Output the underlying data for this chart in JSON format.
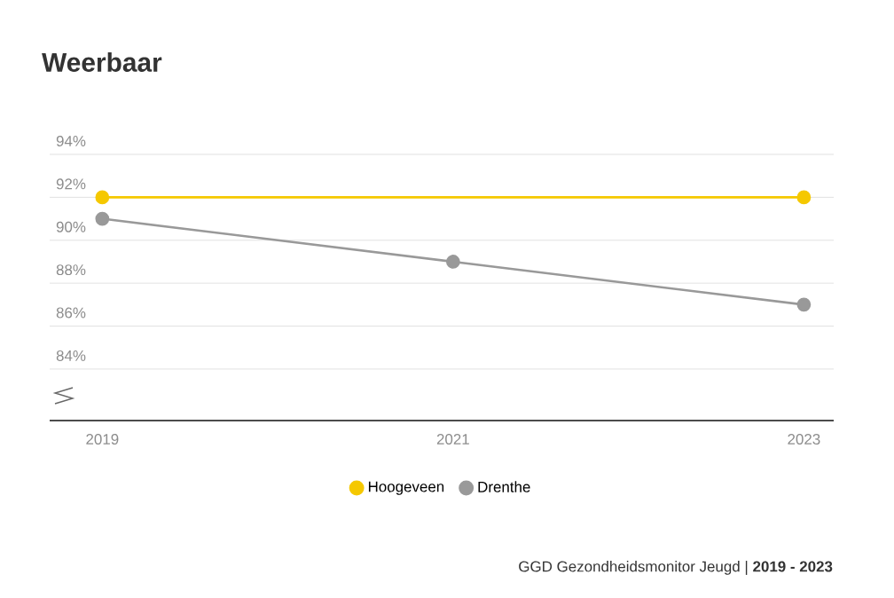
{
  "chart_data": {
    "type": "line",
    "title": "Weerbaar",
    "series": [
      {
        "name": "Hoogeveen",
        "color": "#f5c800",
        "x": [
          2019,
          2023
        ],
        "values": [
          92,
          92
        ]
      },
      {
        "name": "Drenthe",
        "color": "#999999",
        "x": [
          2019,
          2021,
          2023
        ],
        "values": [
          91,
          89,
          87
        ]
      }
    ],
    "xlim": [
      2018.7,
      2023.17
    ],
    "xticks": [
      2019,
      2021,
      2023
    ],
    "ylim": [
      81.6,
      94
    ],
    "yticks": [
      {
        "value": 84,
        "label": "84%"
      },
      {
        "value": 86,
        "label": "86%"
      },
      {
        "value": 88,
        "label": "88%"
      },
      {
        "value": 90,
        "label": "90%"
      },
      {
        "value": 92,
        "label": "92%"
      },
      {
        "value": 94,
        "label": "94%"
      }
    ],
    "grid": "y",
    "legend": "bottom",
    "marker": "circle",
    "line_style": "solid",
    "annotations": [
      "GGD Gezondheidsmonitor Jeugd | **2019 - 2023**"
    ]
  }
}
